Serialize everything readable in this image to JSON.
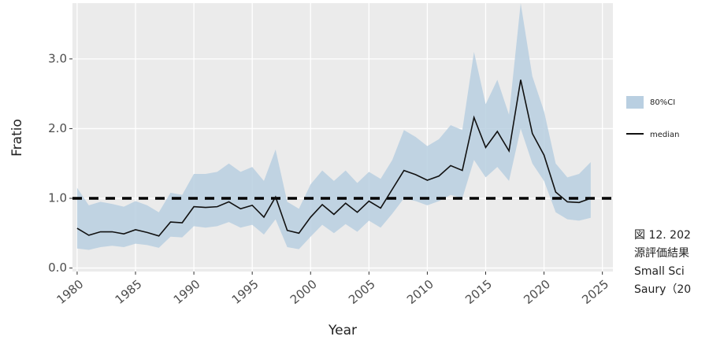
{
  "chart_data": {
    "type": "line",
    "x_label": "Year",
    "y_label": "Fratio",
    "x": [
      1980,
      1981,
      1982,
      1983,
      1984,
      1985,
      1986,
      1987,
      1988,
      1989,
      1990,
      1991,
      1992,
      1993,
      1994,
      1995,
      1996,
      1997,
      1998,
      1999,
      2000,
      2001,
      2002,
      2003,
      2004,
      2005,
      2006,
      2007,
      2008,
      2009,
      2010,
      2011,
      2012,
      2013,
      2014,
      2015,
      2016,
      2017,
      2018,
      2019,
      2020,
      2021,
      2022,
      2023,
      2024
    ],
    "band": {
      "name": "80%CI",
      "color": "#b9cfe1",
      "lower": [
        0.28,
        0.26,
        0.3,
        0.32,
        0.3,
        0.35,
        0.33,
        0.29,
        0.45,
        0.44,
        0.6,
        0.58,
        0.6,
        0.66,
        0.58,
        0.62,
        0.48,
        0.7,
        0.3,
        0.27,
        0.45,
        0.62,
        0.5,
        0.63,
        0.52,
        0.68,
        0.58,
        0.78,
        1.0,
        0.96,
        0.9,
        0.96,
        1.05,
        1.0,
        1.55,
        1.3,
        1.45,
        1.25,
        2.0,
        1.5,
        1.25,
        0.8,
        0.7,
        0.68,
        0.72
      ],
      "upper": [
        1.15,
        0.9,
        0.95,
        0.92,
        0.88,
        0.96,
        0.9,
        0.8,
        1.08,
        1.05,
        1.35,
        1.35,
        1.38,
        1.5,
        1.38,
        1.45,
        1.25,
        1.7,
        0.95,
        0.85,
        1.2,
        1.4,
        1.25,
        1.4,
        1.22,
        1.38,
        1.28,
        1.55,
        1.98,
        1.88,
        1.75,
        1.85,
        2.05,
        1.98,
        3.1,
        2.35,
        2.7,
        2.2,
        3.8,
        2.75,
        2.25,
        1.5,
        1.3,
        1.35,
        1.52
      ]
    },
    "series": [
      {
        "name": "median",
        "color": "#111111",
        "values": [
          0.57,
          0.47,
          0.52,
          0.52,
          0.49,
          0.55,
          0.51,
          0.46,
          0.66,
          0.65,
          0.88,
          0.87,
          0.88,
          0.95,
          0.85,
          0.9,
          0.73,
          1.02,
          0.54,
          0.5,
          0.73,
          0.91,
          0.77,
          0.93,
          0.8,
          0.96,
          0.86,
          1.13,
          1.4,
          1.34,
          1.26,
          1.32,
          1.47,
          1.4,
          2.16,
          1.73,
          1.96,
          1.68,
          2.7,
          1.93,
          1.62,
          1.09,
          0.95,
          0.94,
          1.0
        ]
      }
    ],
    "reference_line": 1.0,
    "xlim": [
      1979.6,
      2025.9
    ],
    "ylim": [
      -0.05,
      3.8
    ],
    "xticks": [
      1980,
      1985,
      1990,
      1995,
      2000,
      2005,
      2010,
      2015,
      2020,
      2025
    ],
    "yticks": [
      {
        "value": 0,
        "label": "0.0"
      },
      {
        "value": 1,
        "label": "1.0"
      },
      {
        "value": 2,
        "label": "2.0"
      },
      {
        "value": 3,
        "label": "3.0"
      }
    ],
    "grid": true,
    "annotations": [
      "図 12. 202",
      "源評価結果",
      "Small  Sci",
      "Saury（20"
    ]
  }
}
